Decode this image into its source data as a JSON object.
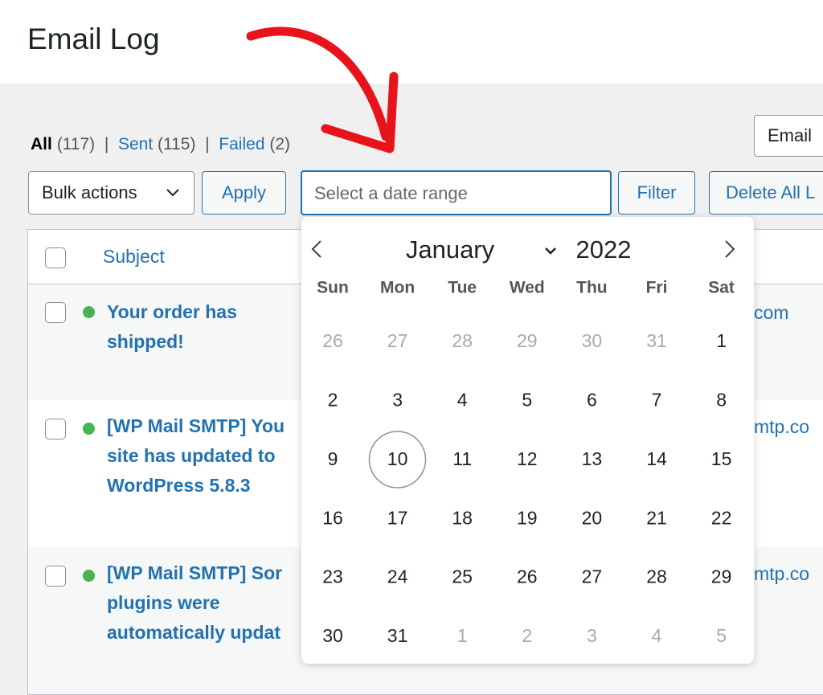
{
  "header": {
    "title": "Email Log"
  },
  "views": [
    {
      "label": "All",
      "count": "(117)"
    },
    {
      "label": "Sent",
      "count": "(115)"
    },
    {
      "label": "Failed",
      "count": "(2)"
    }
  ],
  "view_separator": "|",
  "search_type": "Email",
  "toolbar": {
    "bulk_actions": "Bulk actions",
    "apply": "Apply",
    "date_placeholder": "Select a date range",
    "filter": "Filter",
    "delete_all": "Delete All L"
  },
  "table": {
    "header": {
      "subject": "Subject"
    },
    "rows": [
      {
        "subject_lines": [
          "Your order has",
          "shipped!"
        ],
        "recipient": "com"
      },
      {
        "subject_lines": [
          "[WP Mail SMTP] You",
          "site has updated to",
          "WordPress 5.8.3"
        ],
        "recipient": "mtp.co"
      },
      {
        "subject_lines": [
          "[WP Mail SMTP] Sor",
          "plugins were",
          "automatically updat"
        ],
        "recipient": "mtp.co"
      }
    ]
  },
  "calendar": {
    "month": "January",
    "year": "2022",
    "weekdays": [
      "Sun",
      "Mon",
      "Tue",
      "Wed",
      "Thu",
      "Fri",
      "Sat"
    ],
    "leading_days": [
      26,
      27,
      28,
      29,
      30,
      31
    ],
    "month_days": [
      1,
      2,
      3,
      4,
      5,
      6,
      7,
      8,
      9,
      10,
      11,
      12,
      13,
      14,
      15,
      16,
      17,
      18,
      19,
      20,
      21,
      22,
      23,
      24,
      25,
      26,
      27,
      28,
      29,
      30,
      31
    ],
    "trailing_days": [
      1,
      2,
      3,
      4,
      5
    ]
  }
}
